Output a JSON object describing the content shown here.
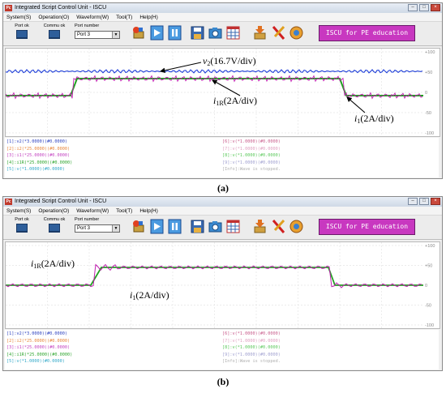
{
  "window_title": "Integrated Script Control Unit - ISCU",
  "app_icon_text": "Pc",
  "menu": [
    "System(S)",
    "Operation(O)",
    "Waveform(W)",
    "Tool(T)",
    "Help(H)"
  ],
  "toolbar": {
    "port_ok_label": "Port ok",
    "commu_ok_label": "Commu ok",
    "port_number_label": "Port number",
    "port_value": "Port 3",
    "banner": "ISCU for PE education"
  },
  "channels": {
    "left": [
      {
        "text": "[1]:v2(*3.0000)(#0.0000)",
        "color": "#2a3fbf"
      },
      {
        "text": "[2]:i2(*25.0000)(#0.0000)",
        "color": "#e8853a"
      },
      {
        "text": "[3]:i1(*25.0000)(#0.0000)",
        "color": "#c23fbf"
      },
      {
        "text": "[4]:i1R(*25.0000)(#0.0000)",
        "color": "#2fa62f"
      },
      {
        "text": "[5]:v(*1.0000)(#0.0000)",
        "color": "#30a8c8"
      }
    ],
    "right": [
      {
        "text": "[6]:v(*1.0000)(#0.0000)",
        "color": "#c85a8a"
      },
      {
        "text": "[7]:v(*1.0000)(#0.0000)",
        "color": "#e0a0c0"
      },
      {
        "text": "[8]:v(*1.0000)(#0.0000)",
        "color": "#5ac85a"
      },
      {
        "text": "[9]:v(*1.0000)(#0.0000)",
        "color": "#a0a0d0"
      },
      {
        "text": "[Info]:Wave is stopped.",
        "color": "#b0b0b0"
      }
    ]
  },
  "scope_ticks": [
    "+100",
    "+50",
    "0",
    "-50",
    "-100"
  ],
  "panel_a": {
    "caption": "(a)",
    "annotations": {
      "v2_symbol": "v",
      "v2_sub": "2",
      "v2_rest": "(16.7V/div)",
      "i1r_symbol": "i",
      "i1r_sub": "1R",
      "i1r_rest": "(2A/div)",
      "i1_symbol": "i",
      "i1_sub": "1",
      "i1_rest": "(2A/div)"
    }
  },
  "panel_b": {
    "caption": "(b)",
    "annotations": {
      "i1r_symbol": "i",
      "i1r_sub": "1R",
      "i1r_rest": "(2A/div)",
      "i1_symbol": "i",
      "i1_sub": "1",
      "i1_rest": "(2A/div)"
    }
  },
  "colors": {
    "v2": "#1f3fd8",
    "i1": "#c020b0",
    "i1R": "#22a022",
    "banner": "#c838c0"
  }
}
